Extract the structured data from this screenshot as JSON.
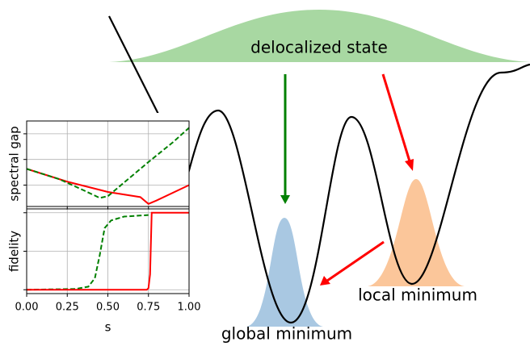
{
  "chart_data": [
    {
      "type": "line",
      "ylabel": "spectral gap",
      "xlim": [
        0,
        1
      ],
      "ylim": [
        0,
        1
      ],
      "xticks": [
        0,
        0.25,
        0.5,
        0.75,
        1
      ],
      "yticks": [
        0.25,
        0.55,
        0.85
      ],
      "grid": true,
      "series": [
        {
          "color": "red",
          "style": "solid",
          "x": [
            0,
            0.25,
            0.5,
            0.7,
            0.75,
            0.8,
            1
          ],
          "values": [
            0.44,
            0.29,
            0.17,
            0.11,
            0.03,
            0.07,
            0.25
          ]
        },
        {
          "color": "green",
          "style": "dashed",
          "x": [
            0,
            0.2,
            0.35,
            0.45,
            0.5,
            0.6,
            0.75,
            0.9,
            1
          ],
          "values": [
            0.44,
            0.32,
            0.19,
            0.1,
            0.12,
            0.28,
            0.52,
            0.75,
            0.92
          ]
        }
      ]
    },
    {
      "type": "line",
      "xlabel": "s",
      "ylabel": "fidelity",
      "xlim": [
        0,
        1
      ],
      "ylim": [
        -0.05,
        1.05
      ],
      "xticks": [
        {
          "value": 0,
          "label": "0.00"
        },
        {
          "value": 0.25,
          "label": "0.25"
        },
        {
          "value": 0.5,
          "label": "0.50"
        },
        {
          "value": 0.75,
          "label": "0.75"
        },
        {
          "value": 1,
          "label": "1.00"
        }
      ],
      "yticks": [
        0,
        0.5,
        1
      ],
      "grid": true,
      "series": [
        {
          "color": "green",
          "style": "dashed",
          "x": [
            0,
            0.3,
            0.38,
            0.42,
            0.45,
            0.48,
            0.52,
            0.6,
            0.75
          ],
          "values": [
            0,
            0.01,
            0.04,
            0.15,
            0.45,
            0.8,
            0.9,
            0.95,
            0.97
          ]
        },
        {
          "color": "red",
          "style": "solid",
          "x": [
            0,
            0.74,
            0.75,
            0.76,
            0.77,
            1
          ],
          "values": [
            0,
            0,
            0.02,
            0.2,
            1,
            1
          ]
        }
      ]
    }
  ],
  "schematic": {
    "delocalized": "delocalized state",
    "global": "global minimum",
    "local": "local minimum"
  }
}
